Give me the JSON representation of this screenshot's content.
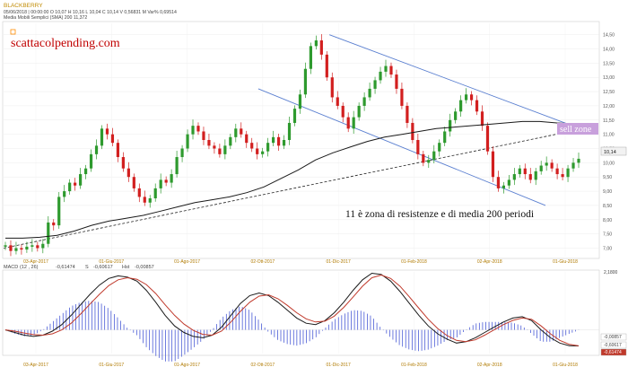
{
  "header": {
    "symbol": "BLACKBERRY",
    "date_line": "05/06/2018 | 00:00:00  O 10,07  H 10,16  L 10,04  C 10,14  V 0,56831 M  Var% 0,69514",
    "sma_line": "Media Mobili Semplici (SMA)   200   11,372"
  },
  "overlay": {
    "site": "scattacolpending.com",
    "sell_zone": "sell zone",
    "note": "11 è zona di resistenze e di media 200 periodi",
    "last_price": "10,14"
  },
  "colors": {
    "up": "#2e9a2e",
    "down": "#d21f1f",
    "channel": "#5a7fd0",
    "sma": "#1a1a1a",
    "macd": "#1a1a1a",
    "signal": "#c0392b",
    "histogram": "#4a5bd6",
    "sell_zone_bg": "#c8a0dc"
  },
  "chart_data": [
    {
      "type": "candlestick",
      "title": "",
      "y_ticks": [
        "14,50",
        "14,00",
        "13,50",
        "13,00",
        "12,50",
        "12,00",
        "11,50",
        "11,00",
        "10,50",
        "10,00",
        "9,50",
        "9,00",
        "8,50",
        "8,00",
        "7,50",
        "7,00"
      ],
      "x_ticks": [
        "03-Apr-2017",
        "01-Giu-2017",
        "01-Ago-2017",
        "02-Ott-2017",
        "01-Dic-2017",
        "01-Feb-2018",
        "02-Apr-2018",
        "01-Giu-2018"
      ],
      "ylim": [
        6.7,
        14.9
      ],
      "close_path": [
        7.1,
        6.9,
        7.0,
        6.95,
        7.05,
        7.1,
        7.0,
        7.15,
        7.9,
        7.8,
        8.8,
        9.0,
        9.3,
        9.2,
        9.6,
        9.8,
        10.3,
        10.6,
        11.2,
        11.0,
        10.7,
        10.2,
        9.8,
        9.5,
        9.1,
        8.8,
        8.6,
        8.75,
        9.1,
        9.4,
        9.3,
        9.6,
        10.2,
        10.5,
        11.0,
        11.3,
        11.1,
        10.8,
        10.6,
        10.5,
        10.3,
        10.6,
        10.9,
        11.2,
        11.0,
        10.7,
        10.5,
        10.3,
        10.4,
        10.7,
        10.9,
        10.6,
        10.8,
        11.4,
        11.9,
        12.4,
        13.3,
        14.1,
        14.3,
        13.8,
        13.0,
        12.3,
        12.0,
        11.6,
        11.2,
        11.6,
        12.0,
        12.3,
        12.6,
        12.9,
        13.2,
        13.4,
        13.1,
        12.6,
        12.0,
        11.4,
        10.8,
        10.3,
        10.0,
        10.1,
        10.4,
        10.7,
        11.1,
        11.5,
        11.8,
        12.2,
        12.4,
        12.2,
        11.8,
        11.3,
        10.4,
        9.5,
        9.1,
        9.2,
        9.4,
        9.6,
        9.8,
        9.6,
        9.4,
        9.7,
        9.9,
        10.0,
        9.8,
        9.6,
        9.5,
        9.8,
        10.0,
        10.14
      ],
      "sma200_path": [
        7.35,
        7.35,
        7.38,
        7.45,
        7.6,
        7.8,
        7.95,
        8.05,
        8.15,
        8.3,
        8.45,
        8.6,
        8.7,
        8.8,
        8.95,
        9.15,
        9.45,
        9.75,
        10.1,
        10.35,
        10.55,
        10.75,
        10.9,
        11.0,
        11.1,
        11.2,
        11.25,
        11.3,
        11.35,
        11.4,
        11.45,
        11.45,
        11.4,
        11.37
      ],
      "channel_upper": {
        "from": [
          14.5,
          "01-Dic-2017"
        ],
        "to": [
          11.1,
          "01-Giu-2018"
        ]
      },
      "channel_lower": {
        "from": [
          12.6,
          "02-Ott-2017"
        ],
        "to": [
          8.5,
          "01-Giu-2018"
        ]
      },
      "trendline": {
        "from": [
          7.0,
          "03-Apr-2017"
        ],
        "to": [
          11.3,
          "01-Giu-2018"
        ]
      }
    },
    {
      "type": "line",
      "title": "MACD",
      "params": "(12 , 26)",
      "legend": [
        {
          "name": "MACD",
          "value": "-0,61474"
        },
        {
          "name": "S",
          "value": "-0,60617"
        },
        {
          "name": "Hst",
          "value": "-0,00857"
        }
      ],
      "y_ticks": [
        "2,1800",
        "-0,00857",
        "-0,60617",
        "-0,61474"
      ],
      "ylim": [
        -0.9,
        2.2
      ],
      "macd": [
        0.0,
        -0.1,
        -0.2,
        -0.25,
        -0.2,
        -0.05,
        0.2,
        0.55,
        0.95,
        1.35,
        1.7,
        1.95,
        2.05,
        2.0,
        1.85,
        1.5,
        1.05,
        0.55,
        0.15,
        -0.1,
        -0.25,
        -0.3,
        -0.2,
        0.1,
        0.55,
        1.0,
        1.3,
        1.4,
        1.3,
        1.05,
        0.75,
        0.45,
        0.25,
        0.2,
        0.35,
        0.65,
        1.05,
        1.5,
        1.9,
        2.15,
        2.1,
        1.85,
        1.45,
        1.0,
        0.55,
        0.15,
        -0.15,
        -0.35,
        -0.5,
        -0.45,
        -0.3,
        -0.1,
        0.1,
        0.3,
        0.45,
        0.5,
        0.35,
        0.0,
        -0.3,
        -0.5,
        -0.6,
        -0.61
      ],
      "signal": [
        0.0,
        -0.05,
        -0.12,
        -0.18,
        -0.2,
        -0.15,
        0.0,
        0.25,
        0.6,
        0.98,
        1.35,
        1.68,
        1.9,
        1.98,
        1.92,
        1.72,
        1.38,
        0.95,
        0.55,
        0.22,
        -0.02,
        -0.17,
        -0.2,
        -0.05,
        0.3,
        0.7,
        1.05,
        1.28,
        1.33,
        1.18,
        0.93,
        0.65,
        0.42,
        0.3,
        0.33,
        0.52,
        0.85,
        1.25,
        1.66,
        1.98,
        2.08,
        1.95,
        1.65,
        1.25,
        0.82,
        0.4,
        0.05,
        -0.22,
        -0.4,
        -0.45,
        -0.38,
        -0.2,
        0.0,
        0.2,
        0.36,
        0.45,
        0.4,
        0.15,
        -0.15,
        -0.4,
        -0.55,
        -0.606
      ]
    }
  ]
}
